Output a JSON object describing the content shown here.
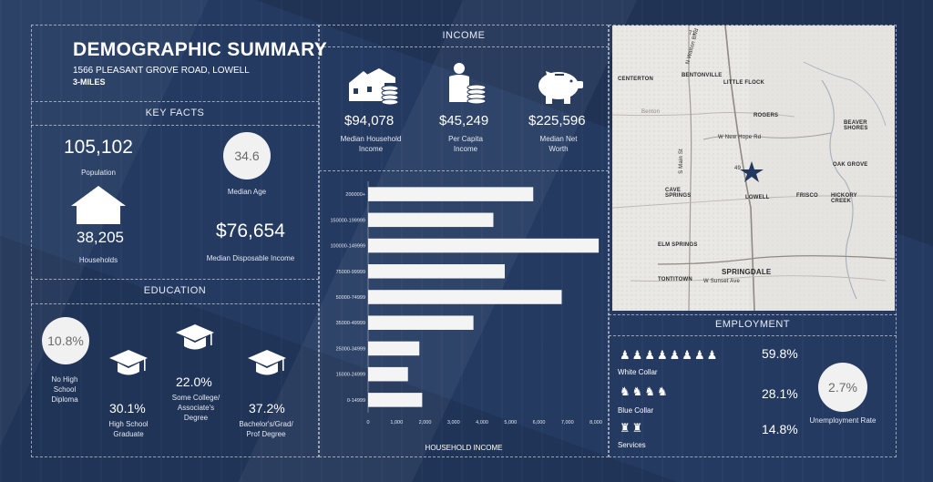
{
  "header": {
    "title": "DEMOGRAPHIC SUMMARY",
    "address": "1566 PLEASANT GROVE ROAD, LOWELL",
    "radius": "3-MILES"
  },
  "key_facts": {
    "title": "KEY FACTS",
    "population_value": "105,102",
    "population_label": "Population",
    "median_age_value": "34.6",
    "median_age_label": "Median Age",
    "households_value": "38,205",
    "households_label": "Households",
    "disposable_income_value": "$76,654",
    "disposable_income_label": "Median Disposable Income"
  },
  "education": {
    "title": "EDUCATION",
    "no_hs_value": "10.8%",
    "no_hs_label": "No High School Diploma",
    "hs_value": "30.1%",
    "hs_label": "High School Graduate",
    "some_college_value": "22.0%",
    "some_college_label": "Some College/ Associate's Degree",
    "bachelor_value": "37.2%",
    "bachelor_label": "Bachelor's/Grad/ Prof Degree"
  },
  "income": {
    "title": "INCOME",
    "median_household_value": "$94,078",
    "median_household_label": "Median Household Income",
    "per_capita_value": "$45,249",
    "per_capita_label": "Per Capita Income",
    "net_worth_value": "$225,596",
    "net_worth_label": "Median Net Worth"
  },
  "chart_data": {
    "type": "bar",
    "orientation": "horizontal",
    "categories": [
      "200000+",
      "150000-199999",
      "100000-149999",
      "75000-99999",
      "50000-74999",
      "35000-49999",
      "25000-34999",
      "15000-24999",
      "0-14999"
    ],
    "values": [
      5800,
      4400,
      8100,
      4800,
      6800,
      3700,
      1800,
      1400,
      1900
    ],
    "xlabel": "HOUSEHOLD INCOME",
    "xlim": [
      0,
      8000
    ],
    "xticks": [
      "0",
      "1,000",
      "2,000",
      "3,000",
      "4,000",
      "5,000",
      "6,000",
      "7,000",
      "8,000"
    ],
    "bar_color": "#f4f4f4",
    "grid": false
  },
  "employment": {
    "title": "EMPLOYMENT",
    "white_collar_value": "59.8%",
    "white_collar_label": "White Collar",
    "blue_collar_value": "28.1%",
    "blue_collar_label": "Blue Collar",
    "services_value": "14.8%",
    "services_label": "Services",
    "unemployment_value": "2.7%",
    "unemployment_label": "Unemployment Rate"
  },
  "map": {
    "labels": {
      "centerton": "CENTERTON",
      "bentonville": "BENTONVILLE",
      "little_flock": "LITTLE FLOCK",
      "benton": "Benton",
      "rogers": "ROGERS",
      "beaver_shores": "BEAVER SHORES",
      "new_hope": "W New Hope Rd",
      "main_st": "S Main St",
      "oak_grove": "OAK GROVE",
      "cave_springs": "CAVE SPRINGS",
      "lowell": "LOWELL",
      "frisco": "FRISCO",
      "hickory_creek": "HICKORY CREEK",
      "elm_springs": "ELM SPRINGS",
      "springdale": "SPRINGDALE",
      "tontitown": "TONTITOWN",
      "sunset": "W Sunset Ave",
      "walton": "N Walton Blvd",
      "hwy49": "49",
      "hwy71": "71"
    }
  },
  "colors": {
    "background": "#243a61",
    "circle": "#f1f1f1",
    "star": "#22385f"
  }
}
